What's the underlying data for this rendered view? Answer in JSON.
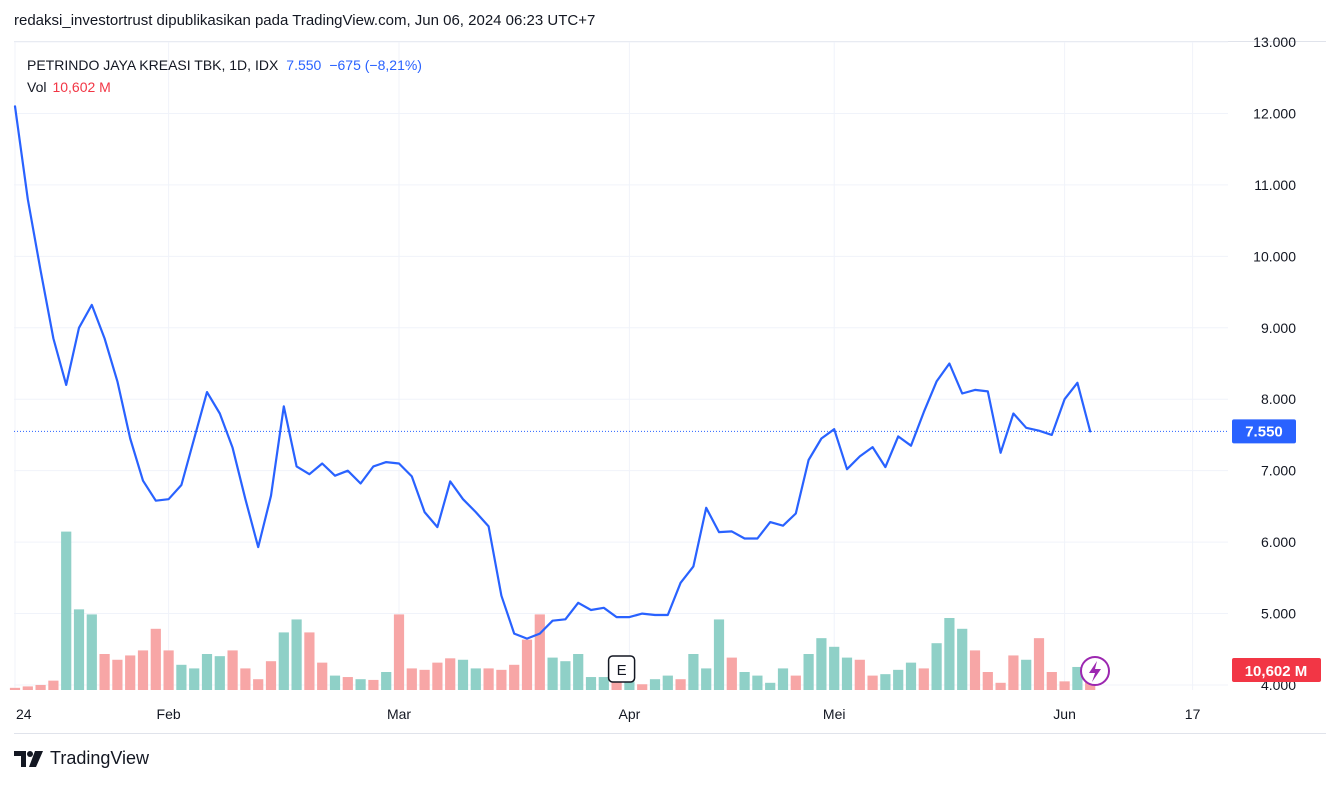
{
  "header": {
    "caption": "redaksi_investortrust dipublikasikan pada TradingView.com, Jun 06, 2024 06:23 UTC+7"
  },
  "legend": {
    "symbol": "PETRINDO JAYA KREASI TBK, 1D, IDX",
    "last": "7.550",
    "change": "−675 (−8,21%)",
    "vol_label": "Vol",
    "vol_value": "10,602 M"
  },
  "price_badge": "7.550",
  "volume_badge": "10,602 M",
  "event_marker": "E",
  "brand": {
    "name": "TradingView"
  },
  "colors": {
    "line": "#2962ff",
    "vol_up": "#8fd0c7",
    "vol_down": "#f7a6a6",
    "badge_price": "#2962ff",
    "badge_vol": "#f23645",
    "flash": "#9c27b0"
  },
  "chart_data": {
    "type": "line",
    "ylim": [
      4000,
      13000
    ],
    "y_ticks": [
      {
        "value": 13000,
        "label": "13.000"
      },
      {
        "value": 12000,
        "label": "12.000"
      },
      {
        "value": 11000,
        "label": "11.000"
      },
      {
        "value": 10000,
        "label": "10.000"
      },
      {
        "value": 9000,
        "label": "9.000"
      },
      {
        "value": 8000,
        "label": "8.000"
      },
      {
        "value": 7000,
        "label": "7.000"
      },
      {
        "value": 6000,
        "label": "6.000"
      },
      {
        "value": 5000,
        "label": "5.000"
      },
      {
        "value": 4000,
        "label": "4.000"
      }
    ],
    "x_ticks": [
      {
        "index": 0,
        "label": "24"
      },
      {
        "index": 12,
        "label": "Feb"
      },
      {
        "index": 30,
        "label": "Mar"
      },
      {
        "index": 48,
        "label": "Apr"
      },
      {
        "index": 64,
        "label": "Mei"
      },
      {
        "index": 82,
        "label": "Jun"
      },
      {
        "index": 92,
        "label": "17"
      }
    ],
    "event_index": 47,
    "series": [
      {
        "values": [
          12100,
          10800,
          9800,
          8850,
          8200,
          9000,
          9320,
          8850,
          8250,
          7450,
          6860,
          6580,
          6600,
          6800,
          7450,
          8100,
          7800,
          7320,
          6600,
          5930,
          6650,
          7900,
          7060,
          6950,
          7100,
          6930,
          7000,
          6820,
          7060,
          7120,
          7100,
          6920,
          6420,
          6210,
          6850,
          6600,
          6420,
          6220,
          5250,
          4720,
          4650,
          4720,
          4900,
          4920,
          5150,
          5050,
          5080,
          4950,
          4950,
          5000,
          4980,
          4980,
          5430,
          5660,
          6480,
          6140,
          6150,
          6050,
          6050,
          6280,
          6230,
          6400,
          7150,
          7450,
          7580,
          7020,
          7200,
          7330,
          7050,
          7480,
          7350,
          7820,
          8250,
          8500,
          8080,
          8130,
          8110,
          7250,
          7800,
          7600,
          7560,
          7500,
          8000,
          8230,
          7550
        ]
      }
    ],
    "volume": [
      {
        "v": 0.03,
        "up": false
      },
      {
        "v": 0.05,
        "up": false
      },
      {
        "v": 0.07,
        "up": false
      },
      {
        "v": 0.13,
        "up": false
      },
      {
        "v": 2.2,
        "up": true
      },
      {
        "v": 1.12,
        "up": true
      },
      {
        "v": 1.05,
        "up": true
      },
      {
        "v": 0.5,
        "up": false
      },
      {
        "v": 0.42,
        "up": false
      },
      {
        "v": 0.48,
        "up": false
      },
      {
        "v": 0.55,
        "up": false
      },
      {
        "v": 0.85,
        "up": false
      },
      {
        "v": 0.55,
        "up": false
      },
      {
        "v": 0.35,
        "up": true
      },
      {
        "v": 0.3,
        "up": true
      },
      {
        "v": 0.5,
        "up": true
      },
      {
        "v": 0.47,
        "up": true
      },
      {
        "v": 0.55,
        "up": false
      },
      {
        "v": 0.3,
        "up": false
      },
      {
        "v": 0.15,
        "up": false
      },
      {
        "v": 0.4,
        "up": false
      },
      {
        "v": 0.8,
        "up": true
      },
      {
        "v": 0.98,
        "up": true
      },
      {
        "v": 0.8,
        "up": false
      },
      {
        "v": 0.38,
        "up": false
      },
      {
        "v": 0.2,
        "up": true
      },
      {
        "v": 0.18,
        "up": false
      },
      {
        "v": 0.15,
        "up": true
      },
      {
        "v": 0.14,
        "up": false
      },
      {
        "v": 0.25,
        "up": true
      },
      {
        "v": 1.05,
        "up": false
      },
      {
        "v": 0.3,
        "up": false
      },
      {
        "v": 0.28,
        "up": false
      },
      {
        "v": 0.38,
        "up": false
      },
      {
        "v": 0.44,
        "up": false
      },
      {
        "v": 0.42,
        "up": true
      },
      {
        "v": 0.3,
        "up": true
      },
      {
        "v": 0.3,
        "up": false
      },
      {
        "v": 0.28,
        "up": false
      },
      {
        "v": 0.35,
        "up": false
      },
      {
        "v": 0.7,
        "up": false
      },
      {
        "v": 1.05,
        "up": false
      },
      {
        "v": 0.45,
        "up": true
      },
      {
        "v": 0.4,
        "up": true
      },
      {
        "v": 0.5,
        "up": true
      },
      {
        "v": 0.18,
        "up": true
      },
      {
        "v": 0.18,
        "up": true
      },
      {
        "v": 0.3,
        "up": false
      },
      {
        "v": 0.12,
        "up": true
      },
      {
        "v": 0.08,
        "up": false
      },
      {
        "v": 0.15,
        "up": true
      },
      {
        "v": 0.2,
        "up": true
      },
      {
        "v": 0.15,
        "up": false
      },
      {
        "v": 0.5,
        "up": true
      },
      {
        "v": 0.3,
        "up": true
      },
      {
        "v": 0.98,
        "up": true
      },
      {
        "v": 0.45,
        "up": false
      },
      {
        "v": 0.25,
        "up": true
      },
      {
        "v": 0.2,
        "up": true
      },
      {
        "v": 0.1,
        "up": true
      },
      {
        "v": 0.3,
        "up": true
      },
      {
        "v": 0.2,
        "up": false
      },
      {
        "v": 0.5,
        "up": true
      },
      {
        "v": 0.72,
        "up": true
      },
      {
        "v": 0.6,
        "up": true
      },
      {
        "v": 0.45,
        "up": true
      },
      {
        "v": 0.42,
        "up": false
      },
      {
        "v": 0.2,
        "up": false
      },
      {
        "v": 0.22,
        "up": true
      },
      {
        "v": 0.28,
        "up": true
      },
      {
        "v": 0.38,
        "up": true
      },
      {
        "v": 0.3,
        "up": false
      },
      {
        "v": 0.65,
        "up": true
      },
      {
        "v": 1.0,
        "up": true
      },
      {
        "v": 0.85,
        "up": true
      },
      {
        "v": 0.55,
        "up": false
      },
      {
        "v": 0.25,
        "up": false
      },
      {
        "v": 0.1,
        "up": false
      },
      {
        "v": 0.48,
        "up": false
      },
      {
        "v": 0.42,
        "up": true
      },
      {
        "v": 0.72,
        "up": false
      },
      {
        "v": 0.25,
        "up": false
      },
      {
        "v": 0.12,
        "up": false
      },
      {
        "v": 0.32,
        "up": true
      },
      {
        "v": 0.15,
        "up": false
      }
    ]
  }
}
